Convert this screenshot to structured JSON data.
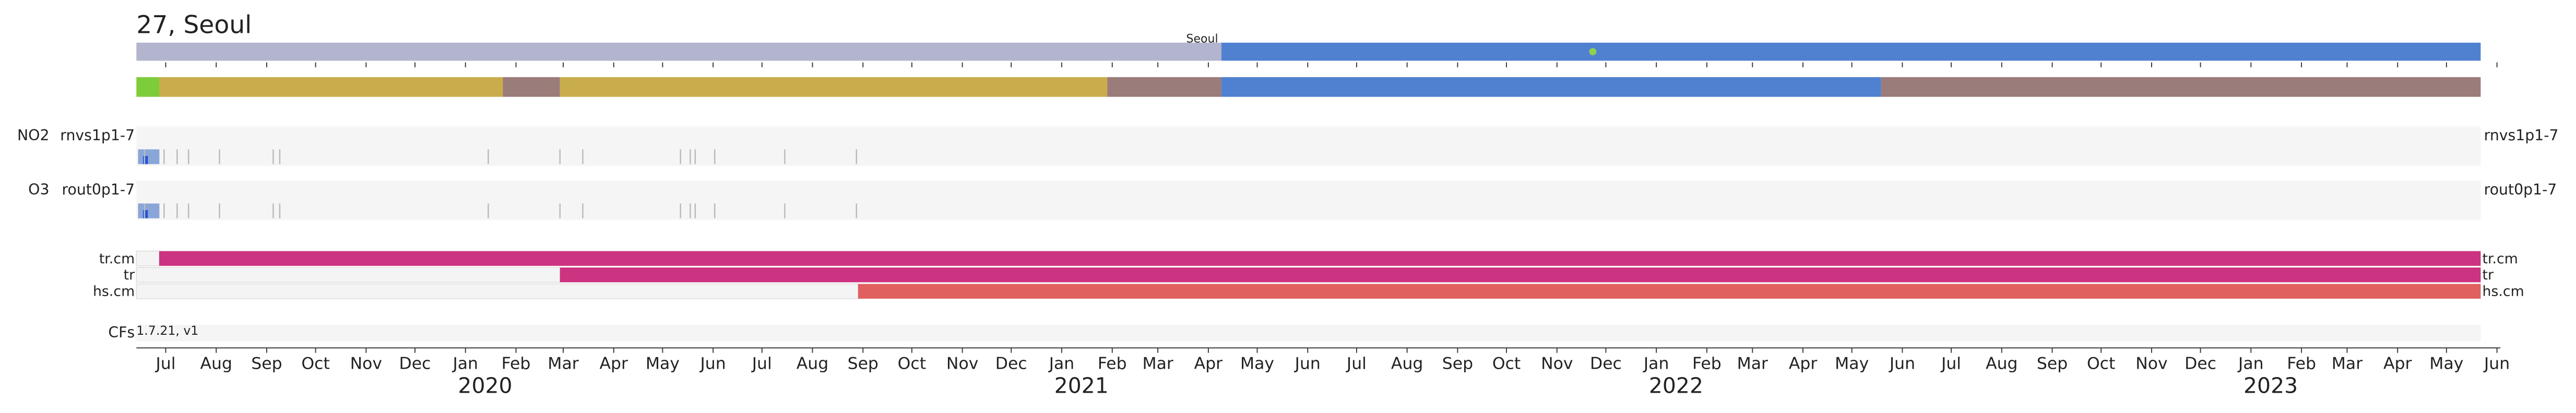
{
  "chart_data": {
    "type": "timeline",
    "title": "27, Seoul",
    "xlim": [
      "2019-06-13",
      "2023-05-22"
    ],
    "xticks": [
      {
        "value": "2019-07",
        "label": "Jul"
      },
      {
        "value": "2019-08",
        "label": "Aug"
      },
      {
        "value": "2019-09",
        "label": "Sep"
      },
      {
        "value": "2019-10",
        "label": "Oct"
      },
      {
        "value": "2019-11",
        "label": "Nov"
      },
      {
        "value": "2019-12",
        "label": "Dec"
      },
      {
        "value": "2020-01",
        "label": "Jan"
      },
      {
        "value": "2020-02",
        "label": "Feb"
      },
      {
        "value": "2020-03",
        "label": "Mar"
      },
      {
        "value": "2020-04",
        "label": "Apr"
      },
      {
        "value": "2020-05",
        "label": "May"
      },
      {
        "value": "2020-06",
        "label": "Jun"
      },
      {
        "value": "2020-07",
        "label": "Jul"
      },
      {
        "value": "2020-08",
        "label": "Aug"
      },
      {
        "value": "2020-09",
        "label": "Sep"
      },
      {
        "value": "2020-10",
        "label": "Oct"
      },
      {
        "value": "2020-11",
        "label": "Nov"
      },
      {
        "value": "2020-12",
        "label": "Dec"
      },
      {
        "value": "2021-01",
        "label": "Jan"
      },
      {
        "value": "2021-02",
        "label": "Feb"
      },
      {
        "value": "2021-03",
        "label": "Mar"
      },
      {
        "value": "2021-04",
        "label": "Apr"
      },
      {
        "value": "2021-05",
        "label": "May"
      },
      {
        "value": "2021-06",
        "label": "Jun"
      },
      {
        "value": "2021-07",
        "label": "Jul"
      },
      {
        "value": "2021-08",
        "label": "Aug"
      },
      {
        "value": "2021-09",
        "label": "Sep"
      },
      {
        "value": "2021-10",
        "label": "Oct"
      },
      {
        "value": "2021-11",
        "label": "Nov"
      },
      {
        "value": "2021-12",
        "label": "Dec"
      },
      {
        "value": "2022-01",
        "label": "Jan"
      },
      {
        "value": "2022-02",
        "label": "Feb"
      },
      {
        "value": "2022-03",
        "label": "Mar"
      },
      {
        "value": "2022-04",
        "label": "Apr"
      },
      {
        "value": "2022-05",
        "label": "May"
      },
      {
        "value": "2022-06",
        "label": "Jun"
      },
      {
        "value": "2022-07",
        "label": "Jul"
      },
      {
        "value": "2022-08",
        "label": "Aug"
      },
      {
        "value": "2022-09",
        "label": "Sep"
      },
      {
        "value": "2022-10",
        "label": "Oct"
      },
      {
        "value": "2022-11",
        "label": "Nov"
      },
      {
        "value": "2022-12",
        "label": "Dec"
      },
      {
        "value": "2023-01",
        "label": "Jan"
      },
      {
        "value": "2023-02",
        "label": "Feb"
      },
      {
        "value": "2023-03",
        "label": "Mar"
      },
      {
        "value": "2023-04",
        "label": "Apr"
      },
      {
        "value": "2023-05",
        "label": "May"
      },
      {
        "value": "2023-06",
        "label": "Jun"
      }
    ],
    "year_ticks": [
      {
        "value": "2020-01",
        "label": "2020"
      },
      {
        "value": "2021-01",
        "label": "2021"
      },
      {
        "value": "2022-01",
        "label": "2022"
      },
      {
        "value": "2023-01",
        "label": "2023"
      }
    ],
    "site_track": {
      "segments": [
        {
          "start": "2019-06-13",
          "end": "2021-04-09",
          "color": "#b3b4cd"
        },
        {
          "start": "2021-04-09",
          "end": "2023-05-22",
          "color": "#4f81d0",
          "label": "Seoul"
        }
      ],
      "markers": [
        {
          "date": "2021-11-23",
          "color": "#8fd14f"
        }
      ]
    },
    "period_track": {
      "segments": [
        {
          "start": "2019-06-13",
          "end": "2019-06-27",
          "color": "#7dcc3a"
        },
        {
          "start": "2019-06-27",
          "end": "2020-01-24",
          "color": "#c9ad4c"
        },
        {
          "start": "2020-01-24",
          "end": "2020-02-28",
          "color": "#9a7c7a"
        },
        {
          "start": "2020-02-28",
          "end": "2021-01-29",
          "color": "#c9ad4c"
        },
        {
          "start": "2021-01-29",
          "end": "2021-04-09",
          "color": "#9a7c7a"
        },
        {
          "start": "2021-04-09",
          "end": "2022-05-19",
          "color": "#4f81d0"
        },
        {
          "start": "2022-05-19",
          "end": "2023-05-22",
          "color": "#9a7c7a"
        }
      ]
    },
    "instruments": [
      {
        "species": "NO2",
        "name": "rnvs1p1-7",
        "events": [
          "2019-06-18",
          "2019-06-30",
          "2019-07-08",
          "2019-07-15",
          "2019-08-03",
          "2019-09-05",
          "2019-09-09",
          "2020-01-15",
          "2020-02-28",
          "2020-03-13",
          "2020-05-12",
          "2020-05-18",
          "2020-05-21",
          "2020-06-02",
          "2020-07-15",
          "2020-08-28"
        ]
      },
      {
        "species": "O3",
        "name": "rout0p1-7",
        "events": [
          "2019-06-18",
          "2019-06-30",
          "2019-07-08",
          "2019-07-15",
          "2019-08-03",
          "2019-09-05",
          "2019-09-09",
          "2020-01-15",
          "2020-02-28",
          "2020-03-13",
          "2020-05-12",
          "2020-05-18",
          "2020-05-21",
          "2020-06-02",
          "2020-07-15",
          "2020-08-28"
        ]
      }
    ],
    "status_tracks": [
      {
        "label": "tr.cm",
        "segments": [
          {
            "start": "2019-06-13",
            "end": "2019-06-27",
            "color": "#f4f4f4"
          },
          {
            "start": "2019-06-27",
            "end": "2023-05-22",
            "color": "#cc3380"
          }
        ]
      },
      {
        "label": "tr",
        "segments": [
          {
            "start": "2019-06-13",
            "end": "2020-02-28",
            "color": "#f4f4f4"
          },
          {
            "start": "2020-02-28",
            "end": "2023-05-22",
            "color": "#cc3380"
          }
        ]
      },
      {
        "label": "hs.cm",
        "segments": [
          {
            "start": "2019-06-13",
            "end": "2020-08-29",
            "color": "#f4f4f4"
          },
          {
            "start": "2020-08-29",
            "end": "2023-05-22",
            "color": "#e06060"
          }
        ]
      }
    ],
    "cfs": {
      "label": "CFs",
      "annotation": "1.7.21, v1"
    }
  }
}
